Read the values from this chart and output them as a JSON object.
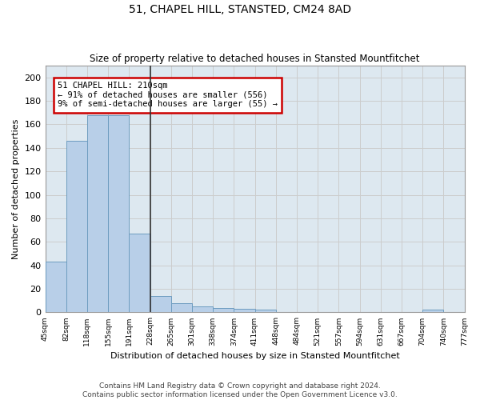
{
  "title": "51, CHAPEL HILL, STANSTED, CM24 8AD",
  "subtitle": "Size of property relative to detached houses in Stansted Mountfitchet",
  "xlabel": "Distribution of detached houses by size in Stansted Mountfitchet",
  "ylabel": "Number of detached properties",
  "footer1": "Contains HM Land Registry data © Crown copyright and database right 2024.",
  "footer2": "Contains public sector information licensed under the Open Government Licence v3.0.",
  "bins": [
    "45sqm",
    "82sqm",
    "118sqm",
    "155sqm",
    "191sqm",
    "228sqm",
    "265sqm",
    "301sqm",
    "338sqm",
    "374sqm",
    "411sqm",
    "448sqm",
    "484sqm",
    "521sqm",
    "557sqm",
    "594sqm",
    "631sqm",
    "667sqm",
    "704sqm",
    "740sqm",
    "777sqm"
  ],
  "values": [
    43,
    146,
    168,
    168,
    67,
    14,
    8,
    5,
    4,
    3,
    2,
    0,
    0,
    0,
    0,
    0,
    0,
    0,
    2,
    0
  ],
  "bar_color": "#b8cfe8",
  "bar_edge_color": "#6e9dc0",
  "property_label": "51 CHAPEL HILL: 210sqm",
  "annotation_line1": "← 91% of detached houses are smaller (556)",
  "annotation_line2": "9% of semi-detached houses are larger (55) →",
  "annotation_box_color": "#ffffff",
  "annotation_box_edge": "#cc0000",
  "vline_color": "#333333",
  "ylim": [
    0,
    210
  ],
  "yticks": [
    0,
    20,
    40,
    60,
    80,
    100,
    120,
    140,
    160,
    180,
    200
  ],
  "grid_color": "#cccccc",
  "bg_color": "#dde8f0"
}
